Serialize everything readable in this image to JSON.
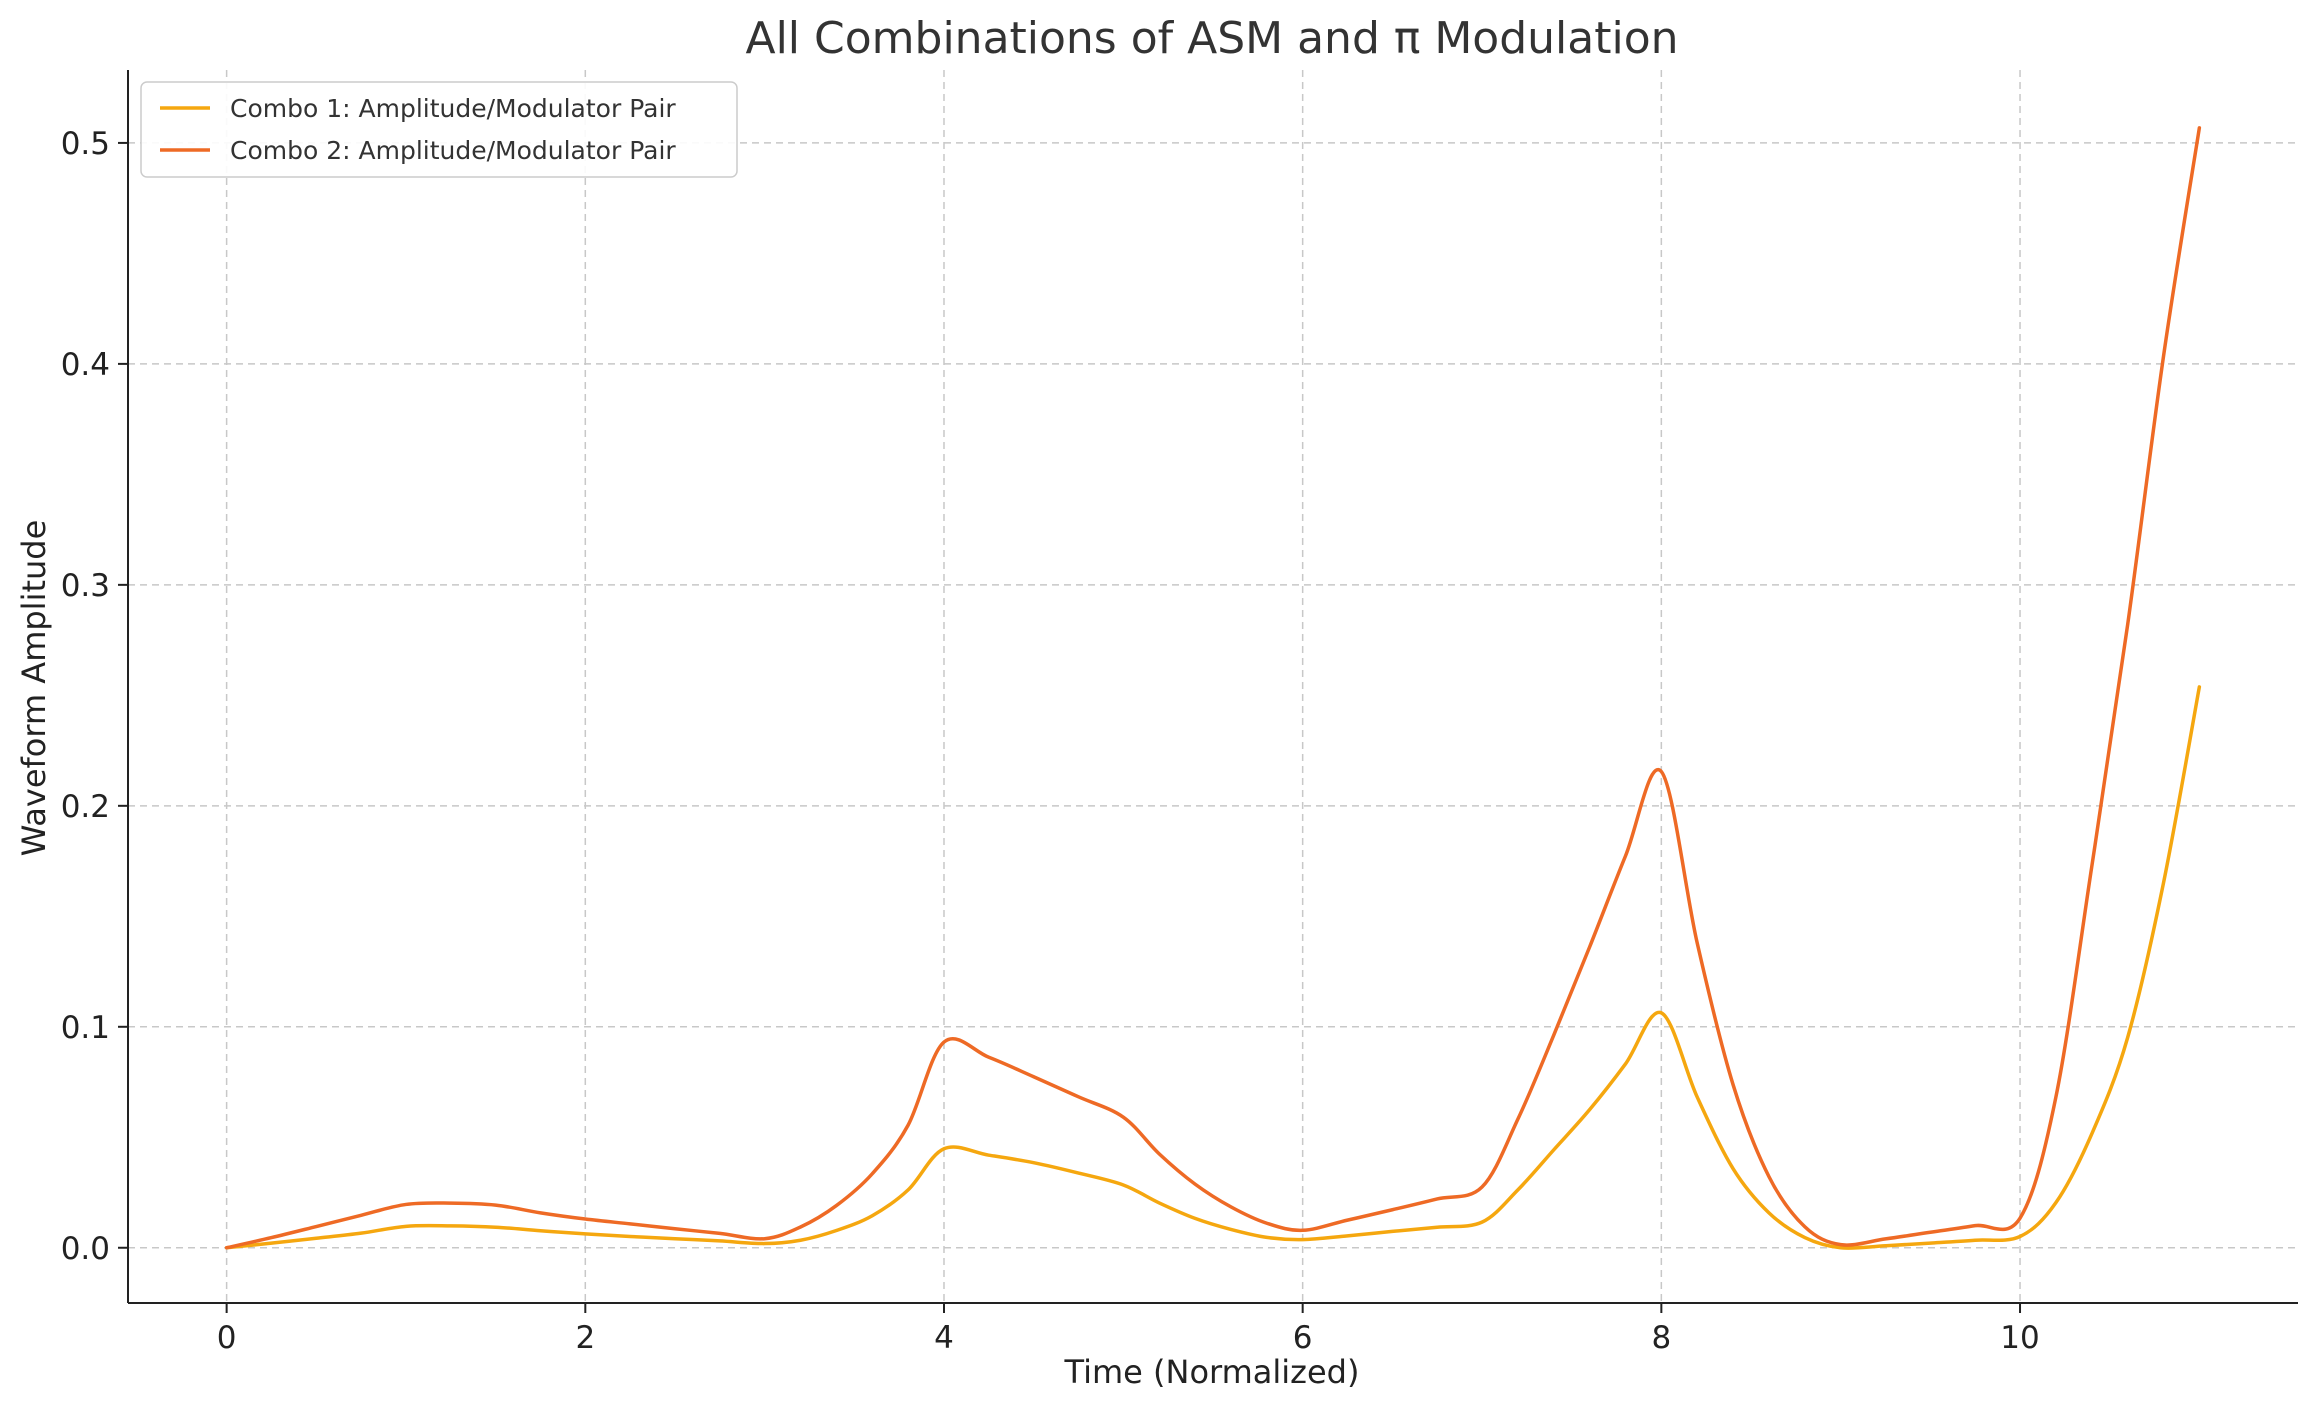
{
  "chart_data": {
    "type": "line",
    "title": "All Combinations of ASM and π Modulation",
    "xlabel": "Time (Normalized)",
    "ylabel": "Waveform Amplitude",
    "xlim": [
      -0.55,
      11.55
    ],
    "ylim": [
      -0.025,
      0.533
    ],
    "xticks": [
      0,
      2,
      4,
      6,
      8,
      10
    ],
    "yticks": [
      0.0,
      0.1,
      0.2,
      0.3,
      0.4,
      0.5
    ],
    "xtick_labels": [
      "0",
      "2",
      "4",
      "6",
      "8",
      "10"
    ],
    "ytick_labels": [
      "0.0",
      "0.1",
      "0.2",
      "0.3",
      "0.4",
      "0.5"
    ],
    "grid": true,
    "legend_position": "top-left",
    "series": [
      {
        "name": "Combo 1: Amplitude/Modulator Pair",
        "color": "#f5a70f",
        "points": [
          [
            0,
            0
          ],
          [
            0.25,
            0.0021
          ],
          [
            0.5,
            0.0043
          ],
          [
            0.75,
            0.0066
          ],
          [
            1,
            0.0097
          ],
          [
            1.25,
            0.0099
          ],
          [
            1.5,
            0.0093
          ],
          [
            1.75,
            0.0077
          ],
          [
            2,
            0.0063
          ],
          [
            2.25,
            0.0051
          ],
          [
            2.5,
            0.0041
          ],
          [
            2.75,
            0.0031
          ],
          [
            3,
            0.0019
          ],
          [
            3.2,
            0.0034
          ],
          [
            3.4,
            0.0078
          ],
          [
            3.6,
            0.0145
          ],
          [
            3.8,
            0.0262
          ],
          [
            4,
            0.0448
          ],
          [
            4.25,
            0.0419
          ],
          [
            4.5,
            0.0385
          ],
          [
            4.75,
            0.0338
          ],
          [
            5,
            0.0284
          ],
          [
            5.2,
            0.0203
          ],
          [
            5.4,
            0.0133
          ],
          [
            5.6,
            0.0083
          ],
          [
            5.8,
            0.0047
          ],
          [
            6,
            0.0037
          ],
          [
            6.25,
            0.0054
          ],
          [
            6.5,
            0.0074
          ],
          [
            6.75,
            0.0093
          ],
          [
            7,
            0.0116
          ],
          [
            7.2,
            0.0262
          ],
          [
            7.4,
            0.0443
          ],
          [
            7.6,
            0.0625
          ],
          [
            7.8,
            0.0832
          ],
          [
            8,
            0.1063
          ],
          [
            8.2,
            0.0682
          ],
          [
            8.4,
            0.0358
          ],
          [
            8.6,
            0.0158
          ],
          [
            8.8,
            0.0046
          ],
          [
            9,
            0.0
          ],
          [
            9.25,
            0.0009
          ],
          [
            9.5,
            0.0021
          ],
          [
            9.75,
            0.0034
          ],
          [
            10,
            0.0051
          ],
          [
            10.2,
            0.0204
          ],
          [
            10.4,
            0.0515
          ],
          [
            10.6,
            0.0951
          ],
          [
            10.8,
            0.1651
          ],
          [
            11,
            0.2538
          ]
        ]
      },
      {
        "name": "Combo 2: Amplitude/Modulator Pair",
        "color": "#ee6a25",
        "points": [
          [
            0,
            0
          ],
          [
            0.25,
            0.0046
          ],
          [
            0.5,
            0.0096
          ],
          [
            0.75,
            0.0147
          ],
          [
            1,
            0.0196
          ],
          [
            1.25,
            0.0202
          ],
          [
            1.5,
            0.0193
          ],
          [
            1.75,
            0.0158
          ],
          [
            2,
            0.013
          ],
          [
            2.25,
            0.0108
          ],
          [
            2.5,
            0.0086
          ],
          [
            2.75,
            0.0065
          ],
          [
            3,
            0.0041
          ],
          [
            3.2,
            0.0094
          ],
          [
            3.4,
            0.0191
          ],
          [
            3.6,
            0.0335
          ],
          [
            3.8,
            0.0555
          ],
          [
            4,
            0.0931
          ],
          [
            4.25,
            0.0862
          ],
          [
            4.5,
            0.0774
          ],
          [
            4.75,
            0.0683
          ],
          [
            5,
            0.0591
          ],
          [
            5.2,
            0.0425
          ],
          [
            5.4,
            0.0288
          ],
          [
            5.6,
            0.0185
          ],
          [
            5.8,
            0.0111
          ],
          [
            6,
            0.0079
          ],
          [
            6.25,
            0.0125
          ],
          [
            6.5,
            0.0172
          ],
          [
            6.75,
            0.0221
          ],
          [
            7,
            0.0275
          ],
          [
            7.2,
            0.0582
          ],
          [
            7.4,
            0.0962
          ],
          [
            7.6,
            0.1361
          ],
          [
            7.8,
            0.1773
          ],
          [
            8,
            0.2155
          ],
          [
            8.2,
            0.1379
          ],
          [
            8.4,
            0.0738
          ],
          [
            8.6,
            0.0322
          ],
          [
            8.8,
            0.0095
          ],
          [
            9,
            0.0014
          ],
          [
            9.25,
            0.004
          ],
          [
            9.5,
            0.007
          ],
          [
            9.75,
            0.01
          ],
          [
            10,
            0.0134
          ],
          [
            10.2,
            0.0682
          ],
          [
            10.4,
            0.1725
          ],
          [
            10.6,
            0.2819
          ],
          [
            10.8,
            0.4034
          ],
          [
            11,
            0.5068
          ]
        ]
      }
    ]
  }
}
